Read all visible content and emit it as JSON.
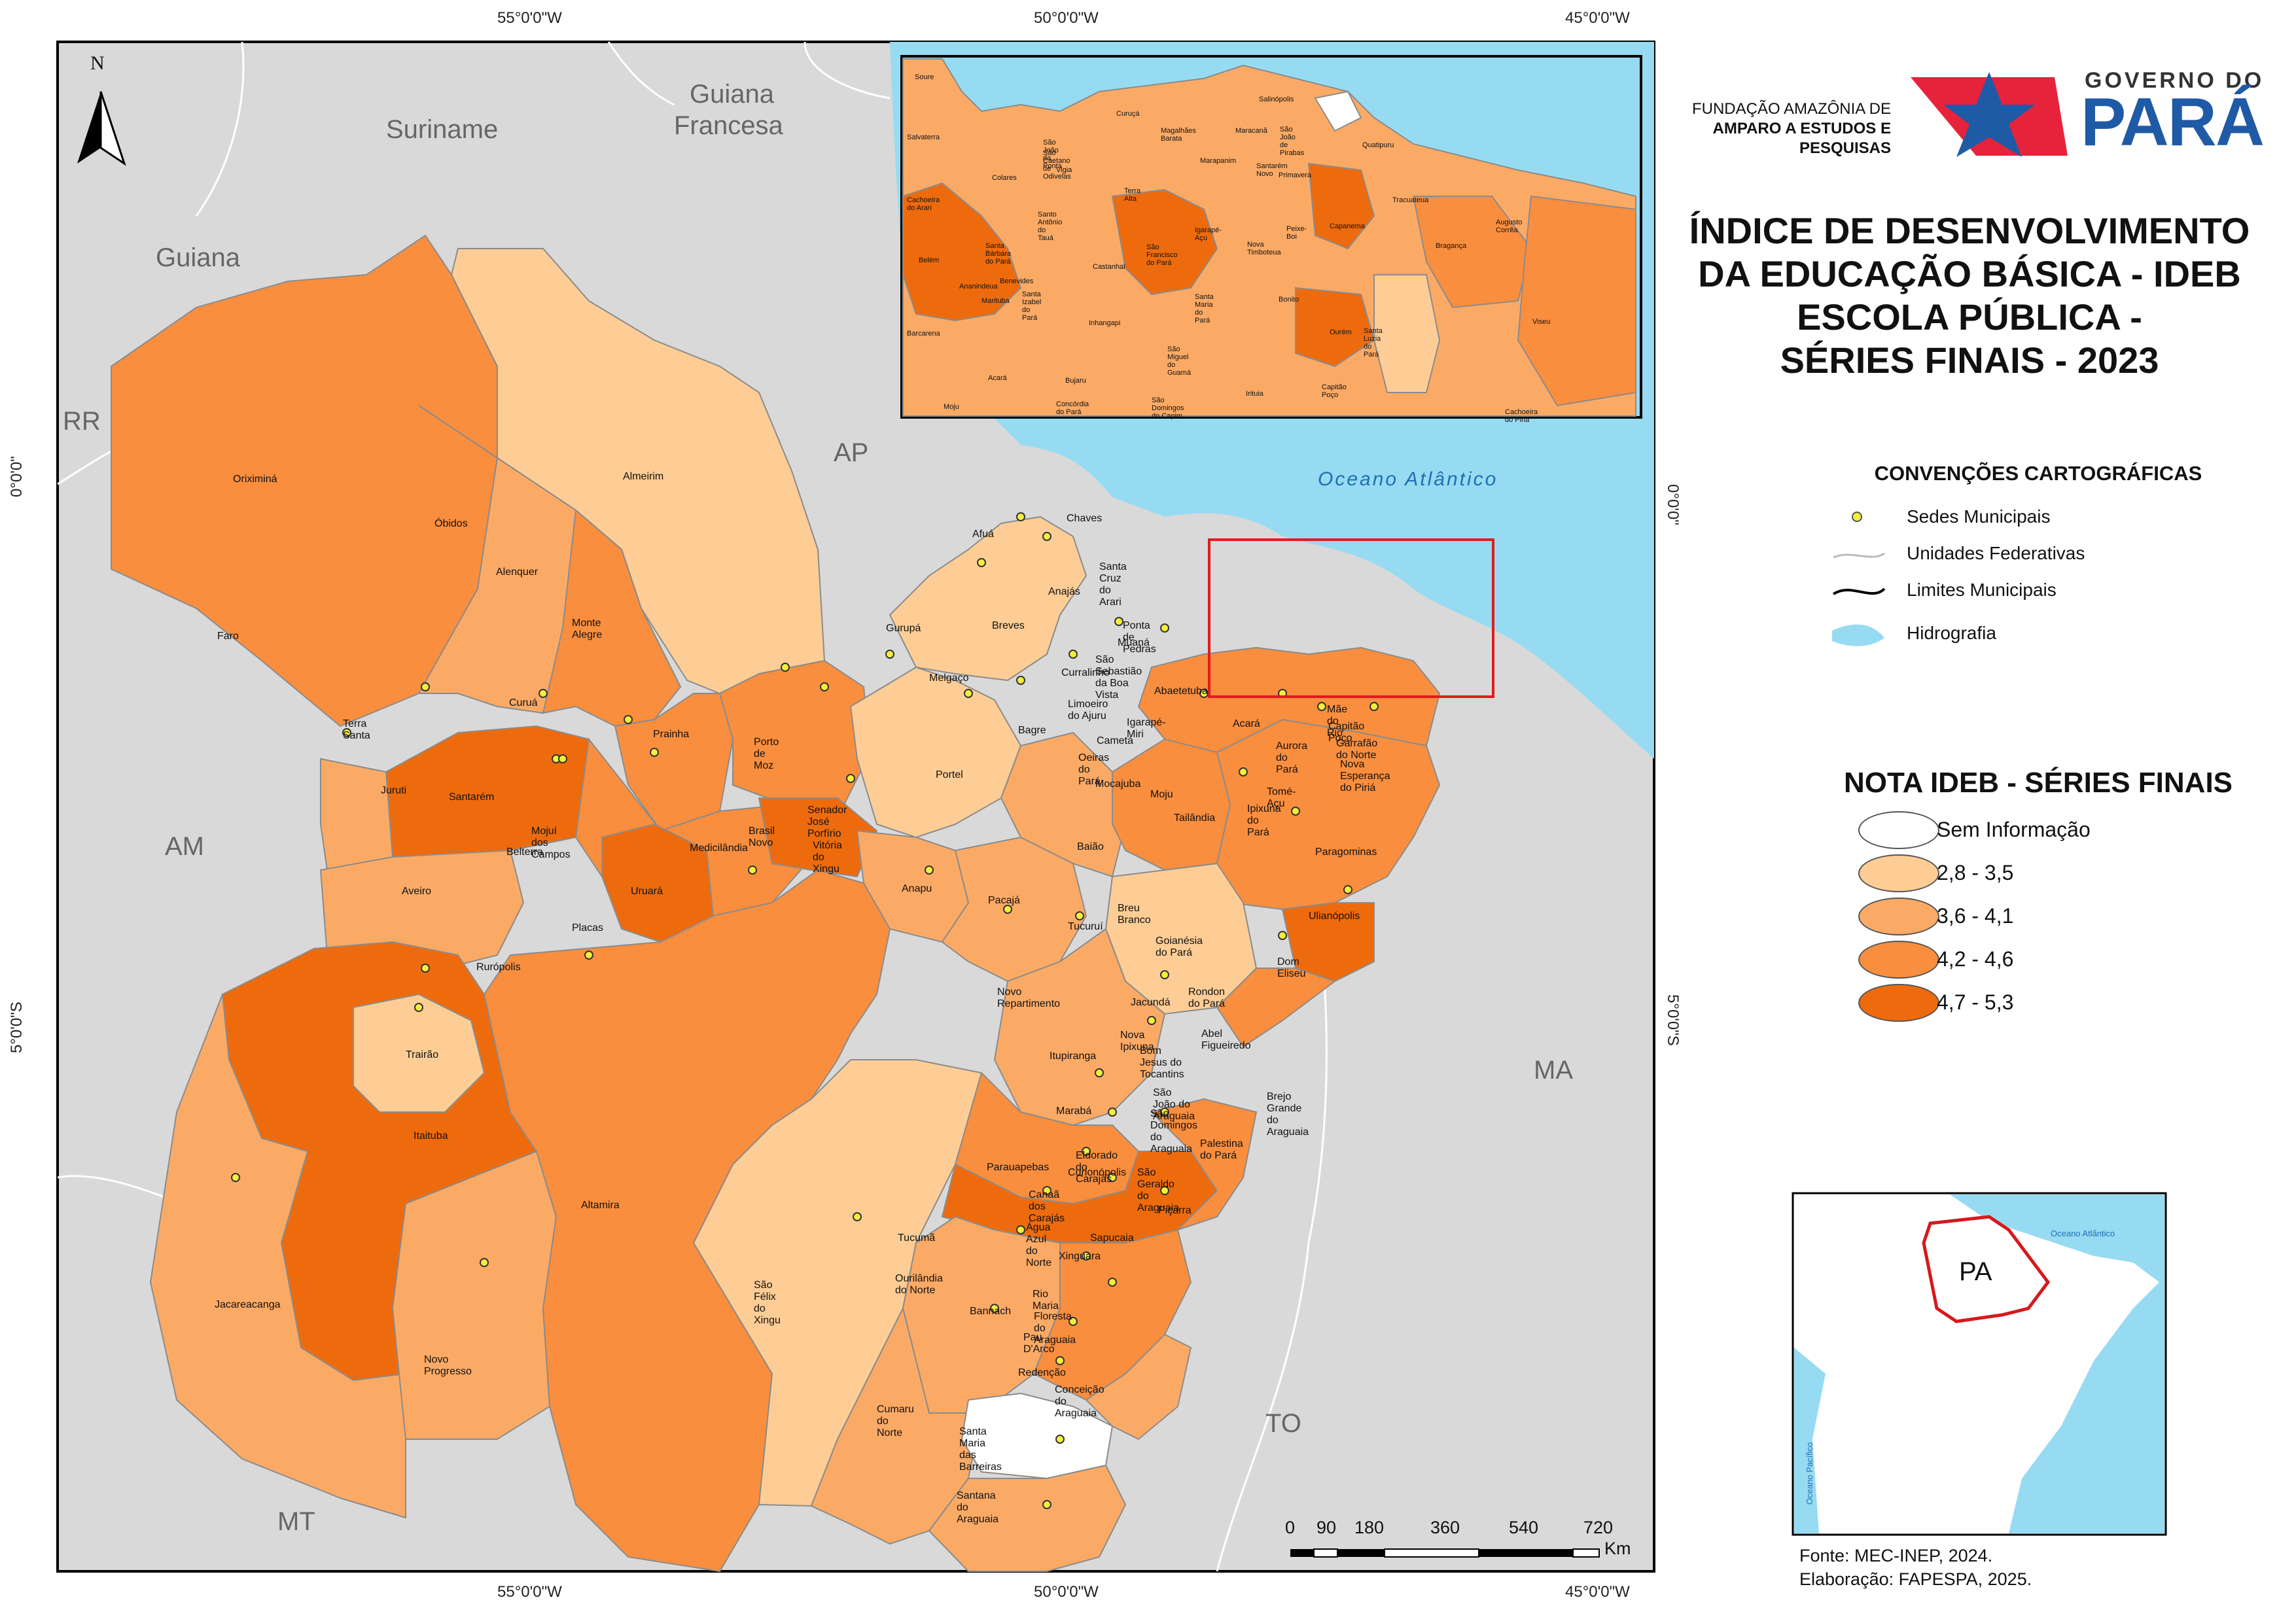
{
  "graticule": {
    "lon_top": [
      "55°0'0\"W",
      "50°0'0\"W",
      "45°0'0\"W"
    ],
    "lon_bottom": [
      "55°0'0\"W",
      "50°0'0\"W",
      "45°0'0\"W"
    ],
    "lat_left": [
      "0°0'0\"",
      "5°0'0\"S"
    ],
    "lat_right": [
      "0°0'0\"",
      "5°0'0\"S"
    ]
  },
  "north_arrow": "N",
  "region_labels": {
    "suriname": "Suriname",
    "guiana_francesa_1": "Guiana",
    "guiana_francesa_2": "Francesa",
    "guiana": "Guiana",
    "rr": "RR",
    "ap": "AP",
    "am": "AM",
    "ma": "MA",
    "to": "TO",
    "mt": "MT",
    "ocean": "Oceano Atlântico"
  },
  "municipalities": [
    "Oriximiná",
    "Faro",
    "Óbidos",
    "Alenquer",
    "Almeirim",
    "Monte Alegre",
    "Terra Santa",
    "Curuá",
    "Prainha",
    "Juruti",
    "Santarém",
    "Mojuí dos Campos",
    "Belterra",
    "Porto de Moz",
    "Medicilândia",
    "Brasil Novo",
    "Vitória do Xingu",
    "Senador José Porfírio",
    "Uruará",
    "Placas",
    "Aveiro",
    "Rurópolis",
    "Trairão",
    "Itaituba",
    "Altamira",
    "Jacareacanga",
    "Novo Progresso",
    "São Félix do Xingu",
    "Afuá",
    "Chaves",
    "Anajás",
    "Gurupá",
    "Breves",
    "Melgaço",
    "Portel",
    "Bagre",
    "Curralinho",
    "Oeiras do Pará",
    "Santa Cruz do Arari",
    "Ponta de Pedras",
    "Muaná",
    "São Sebastião da Boa Vista",
    "Abaetetuba",
    "Limoeiro do Ajuru",
    "Igarapé-Miri",
    "Cametá",
    "Mocajuba",
    "Moju",
    "Baião",
    "Tailândia",
    "Acará",
    "Mãe do Rio",
    "Capitão Poço",
    "Garrafão do Norte",
    "Aurora do Pará",
    "Nova Esperança do Piriá",
    "Tomé-Açu",
    "Ipixuna do Pará",
    "Paragominas",
    "Ulianópolis",
    "Dom Eliseu",
    "Anapu",
    "Pacajá",
    "Tucuruí",
    "Breu Branco",
    "Goianésia do Pará",
    "Novo Repartimento",
    "Jacundá",
    "Rondon do Pará",
    "Nova Ipixuna",
    "Abel Figueiredo",
    "Bom Jesus do Tocantins",
    "Itupiranga",
    "São João do Araguaia",
    "Brejo Grande do Araguaia",
    "São Domingos do Araguaia",
    "Marabá",
    "Palestina do Pará",
    "Parauapebas",
    "Eldorado do Carajás",
    "Curionópolis",
    "São Geraldo do Araguaia",
    "Canaã dos Carajás",
    "Piçarra",
    "Água Azul do Norte",
    "Tucumã",
    "Sapucaia",
    "Xinguara",
    "Ourilândia do Norte",
    "Rio Maria",
    "Bannach",
    "Floresta do Araguaia",
    "Pau D'Arco",
    "Redenção",
    "Conceição do Araguaia",
    "Cumaru do Norte",
    "Santa Maria das Barreiras",
    "Santana do Araguaia"
  ],
  "inset_municipalities": [
    "Soure",
    "Salvaterra",
    "Salinópolis",
    "Curuçá",
    "Magalhães Barata",
    "Maracanã",
    "São João de Pirabas",
    "São João da Ponta",
    "Marapanim",
    "Quatipuru",
    "São Caetano de Odivelas",
    "Vigia",
    "Colares",
    "Santarém Novo",
    "Primavera",
    "Cachoeira do Arari",
    "Terra Alta",
    "Santo Antônio do Tauá",
    "Igarapé-Açu",
    "Peixe-Boi",
    "Capanema",
    "Tracuateua",
    "Augusto Corrêa",
    "Nova Timboteua",
    "São Francisco do Pará",
    "Santa Bárbara do Pará",
    "Castanhal",
    "Bragança",
    "Belém",
    "Ananindeua",
    "Benevides",
    "Marituba",
    "Santa Izabel do Pará",
    "Santa Maria do Pará",
    "Bonito",
    "Viseu",
    "Inhangapi",
    "Ourém",
    "Santa Luzia do Pará",
    "Barcarena",
    "São Miguel do Guamá",
    "Acará",
    "Bujaru",
    "Irituia",
    "Capitão Poço",
    "Concórdia do Pará",
    "São Domingos do Capim",
    "Moju",
    "Cachoeira do Piriá"
  ],
  "logos": {
    "fapespa_line1": "FUNDAÇÃO AMAZÔNIA DE",
    "fapespa_line2": "AMPARO A ESTUDOS E",
    "fapespa_line3": "PESQUISAS",
    "gov_top": "GOVERNO DO",
    "gov_main": "PARÁ"
  },
  "title_lines": [
    "ÍNDICE DE DESENVOLVIMENTO",
    "DA EDUCAÇÃO BÁSICA - IDEB",
    "ESCOLA PÚBLICA -",
    "SÉRIES FINAIS - 2023"
  ],
  "conventions": {
    "heading": "CONVENÇÕES CARTOGRÁFICAS",
    "items": [
      "Sedes Municipais",
      "Unidades Federativas",
      "Limites Municipais",
      "Hidrografia"
    ]
  },
  "legend": {
    "heading": "NOTA IDEB - SÉRIES FINAIS",
    "classes": [
      {
        "label": "Sem Informação",
        "color": "#ffffff"
      },
      {
        "label": "2,8 - 3,5",
        "color": "#fdcd95"
      },
      {
        "label": "3,6 - 4,1",
        "color": "#fbaa66"
      },
      {
        "label": "4,2 - 4,6",
        "color": "#f98e3e"
      },
      {
        "label": "4,7 - 5,3",
        "color": "#ee6b0d"
      }
    ]
  },
  "locator": {
    "state": "PA",
    "ocean": "Oceano Atlântico",
    "pacific": "Oceano Pacífico"
  },
  "scale": {
    "ticks": [
      "0",
      "90",
      "180",
      "360",
      "540",
      "720"
    ],
    "unit": "Km"
  },
  "credits": {
    "source": "Fonte: MEC-INEP, 2024.",
    "elaboration": "Elaboração: FAPESPA, 2025."
  },
  "colors": {
    "water": "#97dbf2",
    "neighbor": "#d9d9d9",
    "frame": "#000000",
    "seat_point": "#f4ee3c",
    "inset_frame": "#e31a1c",
    "pa_outline": "#d7191c"
  }
}
